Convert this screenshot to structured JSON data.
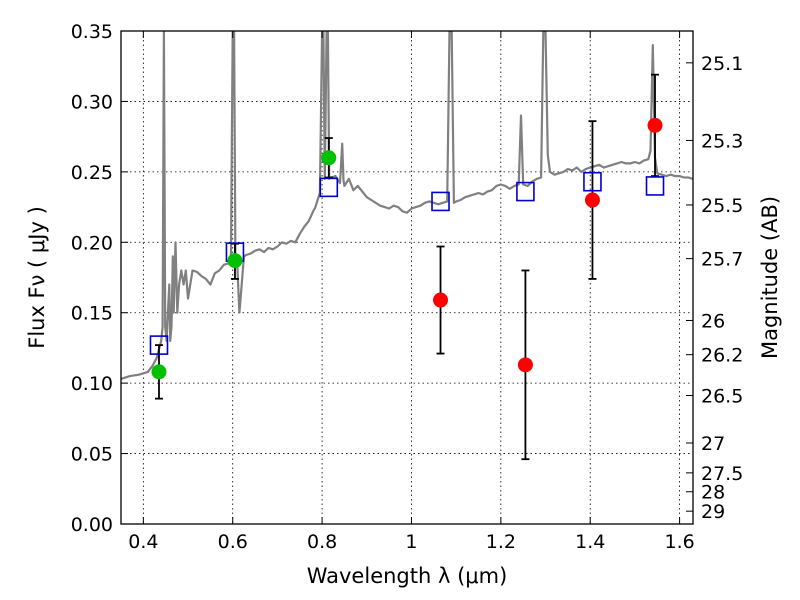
{
  "chart_data": {
    "type": "scatter",
    "xlabel": "Wavelength  λ (μm)",
    "ylabel_left": "Flux  Fν  ( μJy )",
    "ylabel_right": "Magnitude (AB)",
    "xlim": [
      0.35,
      1.63
    ],
    "ylim": [
      0.0,
      0.35
    ],
    "grid": true,
    "x_ticks": [
      0.4,
      0.6,
      0.8,
      1.0,
      1.2,
      1.4,
      1.6
    ],
    "x_tick_labels": [
      "0.4",
      "0.6",
      "0.8",
      "1",
      "1.2",
      "1.4",
      "1.6"
    ],
    "y_ticks": [
      0.0,
      0.05,
      0.1,
      0.15,
      0.2,
      0.25,
      0.3,
      0.35
    ],
    "y_tick_labels": [
      "0.00",
      "0.05",
      "0.10",
      "0.15",
      "0.20",
      "0.25",
      "0.30",
      "0.35"
    ],
    "right_ticks": [
      {
        "flux": 0.3274,
        "label": "25.1"
      },
      {
        "flux": 0.2723,
        "label": "25.3"
      },
      {
        "flux": 0.2265,
        "label": "25.5"
      },
      {
        "flux": 0.1884,
        "label": "25.7"
      },
      {
        "flux": 0.1445,
        "label": "26"
      },
      {
        "flux": 0.1202,
        "label": "26.2"
      },
      {
        "flux": 0.0912,
        "label": "26.5"
      },
      {
        "flux": 0.0575,
        "label": "27"
      },
      {
        "flux": 0.0363,
        "label": "27.5"
      },
      {
        "flux": 0.0229,
        "label": "28"
      },
      {
        "flux": 0.0091,
        "label": "29"
      }
    ],
    "colors": {
      "model": "#808080",
      "green": "#00c000",
      "red": "#ff0000",
      "box": "#0000cc",
      "errorbar": "#000000"
    },
    "model_spectrum": {
      "name": "",
      "points": [
        [
          0.35,
          0.103
        ],
        [
          0.37,
          0.105
        ],
        [
          0.39,
          0.106
        ],
        [
          0.41,
          0.108
        ],
        [
          0.42,
          0.112
        ],
        [
          0.43,
          0.118
        ],
        [
          0.435,
          0.124
        ],
        [
          0.44,
          0.13
        ],
        [
          0.443,
          0.14
        ],
        [
          0.446,
          0.35
        ],
        [
          0.449,
          0.14
        ],
        [
          0.452,
          0.13
        ],
        [
          0.455,
          0.15
        ],
        [
          0.458,
          0.17
        ],
        [
          0.46,
          0.13
        ],
        [
          0.463,
          0.14
        ],
        [
          0.466,
          0.19
        ],
        [
          0.468,
          0.15
        ],
        [
          0.472,
          0.2
        ],
        [
          0.476,
          0.15
        ],
        [
          0.48,
          0.17
        ],
        [
          0.485,
          0.18
        ],
        [
          0.49,
          0.17
        ],
        [
          0.495,
          0.18
        ],
        [
          0.5,
          0.16
        ],
        [
          0.51,
          0.18
        ],
        [
          0.52,
          0.179
        ],
        [
          0.53,
          0.176
        ],
        [
          0.54,
          0.174
        ],
        [
          0.55,
          0.17
        ],
        [
          0.56,
          0.178
        ],
        [
          0.57,
          0.18
        ],
        [
          0.58,
          0.184
        ],
        [
          0.59,
          0.185
        ],
        [
          0.596,
          0.186
        ],
        [
          0.6,
          0.35
        ],
        [
          0.603,
          0.35
        ],
        [
          0.606,
          0.19
        ],
        [
          0.61,
          0.185
        ],
        [
          0.615,
          0.15
        ],
        [
          0.62,
          0.17
        ],
        [
          0.625,
          0.19
        ],
        [
          0.63,
          0.191
        ],
        [
          0.64,
          0.192
        ],
        [
          0.65,
          0.194
        ],
        [
          0.66,
          0.195
        ],
        [
          0.67,
          0.193
        ],
        [
          0.68,
          0.196
        ],
        [
          0.69,
          0.195
        ],
        [
          0.7,
          0.197
        ],
        [
          0.71,
          0.2
        ],
        [
          0.72,
          0.199
        ],
        [
          0.73,
          0.201
        ],
        [
          0.74,
          0.2
        ],
        [
          0.75,
          0.206
        ],
        [
          0.76,
          0.211
        ],
        [
          0.77,
          0.215
        ],
        [
          0.78,
          0.222
        ],
        [
          0.785,
          0.225
        ],
        [
          0.79,
          0.23
        ],
        [
          0.795,
          0.235
        ],
        [
          0.8,
          0.35
        ],
        [
          0.803,
          0.35
        ],
        [
          0.806,
          0.245
        ],
        [
          0.81,
          0.35
        ],
        [
          0.813,
          0.35
        ],
        [
          0.816,
          0.245
        ],
        [
          0.82,
          0.246
        ],
        [
          0.83,
          0.247
        ],
        [
          0.84,
          0.242
        ],
        [
          0.845,
          0.27
        ],
        [
          0.848,
          0.244
        ],
        [
          0.85,
          0.24
        ],
        [
          0.86,
          0.245
        ],
        [
          0.87,
          0.237
        ],
        [
          0.88,
          0.24
        ],
        [
          0.89,
          0.236
        ],
        [
          0.9,
          0.232
        ],
        [
          0.91,
          0.23
        ],
        [
          0.92,
          0.228
        ],
        [
          0.93,
          0.226
        ],
        [
          0.94,
          0.225
        ],
        [
          0.95,
          0.224
        ],
        [
          0.96,
          0.226
        ],
        [
          0.97,
          0.225
        ],
        [
          0.98,
          0.222
        ],
        [
          0.99,
          0.221
        ],
        [
          1.0,
          0.224
        ],
        [
          1.01,
          0.225
        ],
        [
          1.02,
          0.226
        ],
        [
          1.03,
          0.228
        ],
        [
          1.04,
          0.229
        ],
        [
          1.05,
          0.228
        ],
        [
          1.06,
          0.227
        ],
        [
          1.07,
          0.228
        ],
        [
          1.08,
          0.229
        ],
        [
          1.085,
          0.35
        ],
        [
          1.09,
          0.35
        ],
        [
          1.095,
          0.228
        ],
        [
          1.1,
          0.229
        ],
        [
          1.11,
          0.23
        ],
        [
          1.12,
          0.232
        ],
        [
          1.13,
          0.233
        ],
        [
          1.14,
          0.234
        ],
        [
          1.15,
          0.235
        ],
        [
          1.16,
          0.234
        ],
        [
          1.17,
          0.236
        ],
        [
          1.18,
          0.237
        ],
        [
          1.19,
          0.24
        ],
        [
          1.2,
          0.241
        ],
        [
          1.21,
          0.24
        ],
        [
          1.22,
          0.238
        ],
        [
          1.23,
          0.24
        ],
        [
          1.24,
          0.241
        ],
        [
          1.245,
          0.29
        ],
        [
          1.25,
          0.241
        ],
        [
          1.26,
          0.24
        ],
        [
          1.27,
          0.243
        ],
        [
          1.28,
          0.245
        ],
        [
          1.29,
          0.246
        ],
        [
          1.295,
          0.35
        ],
        [
          1.3,
          0.35
        ],
        [
          1.305,
          0.262
        ],
        [
          1.31,
          0.25
        ],
        [
          1.32,
          0.248
        ],
        [
          1.33,
          0.249
        ],
        [
          1.34,
          0.25
        ],
        [
          1.35,
          0.252
        ],
        [
          1.36,
          0.251
        ],
        [
          1.37,
          0.253
        ],
        [
          1.38,
          0.25
        ],
        [
          1.39,
          0.252
        ],
        [
          1.4,
          0.253
        ],
        [
          1.41,
          0.254
        ],
        [
          1.42,
          0.255
        ],
        [
          1.43,
          0.253
        ],
        [
          1.44,
          0.254
        ],
        [
          1.45,
          0.255
        ],
        [
          1.46,
          0.256
        ],
        [
          1.47,
          0.257
        ],
        [
          1.48,
          0.256
        ],
        [
          1.49,
          0.256
        ],
        [
          1.5,
          0.257
        ],
        [
          1.51,
          0.256
        ],
        [
          1.52,
          0.258
        ],
        [
          1.53,
          0.259
        ],
        [
          1.535,
          0.265
        ],
        [
          1.54,
          0.34
        ],
        [
          1.545,
          0.26
        ],
        [
          1.55,
          0.249
        ],
        [
          1.56,
          0.248
        ],
        [
          1.57,
          0.247
        ],
        [
          1.58,
          0.248
        ],
        [
          1.59,
          0.247
        ],
        [
          1.6,
          0.247
        ],
        [
          1.61,
          0.246
        ],
        [
          1.62,
          0.246
        ],
        [
          1.63,
          0.245
        ]
      ]
    },
    "model_boxes": [
      {
        "x": 0.435,
        "y": 0.127
      },
      {
        "x": 0.605,
        "y": 0.193
      },
      {
        "x": 0.815,
        "y": 0.239
      },
      {
        "x": 1.065,
        "y": 0.229
      },
      {
        "x": 1.255,
        "y": 0.236
      },
      {
        "x": 1.405,
        "y": 0.243
      },
      {
        "x": 1.545,
        "y": 0.24
      }
    ],
    "observed_green": [
      {
        "x": 0.435,
        "y": 0.108,
        "err_low": 0.089,
        "err_high": 0.127
      },
      {
        "x": 0.605,
        "y": 0.187,
        "err_low": 0.174,
        "err_high": 0.199
      },
      {
        "x": 0.815,
        "y": 0.26,
        "err_low": 0.246,
        "err_high": 0.274
      }
    ],
    "observed_red": [
      {
        "x": 1.065,
        "y": 0.159,
        "err_low": 0.121,
        "err_high": 0.197
      },
      {
        "x": 1.255,
        "y": 0.113,
        "err_low": 0.046,
        "err_high": 0.18
      },
      {
        "x": 1.405,
        "y": 0.23,
        "err_low": 0.174,
        "err_high": 0.286
      },
      {
        "x": 1.545,
        "y": 0.283,
        "err_low": 0.247,
        "err_high": 0.319
      }
    ]
  }
}
